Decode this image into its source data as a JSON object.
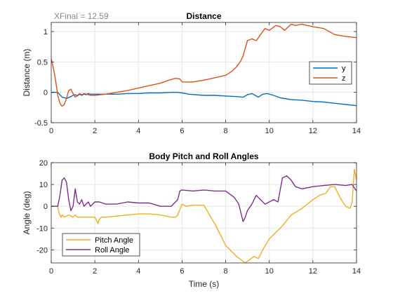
{
  "figure": {
    "xlabel": "Time (s)"
  },
  "chart_data": [
    {
      "type": "line",
      "title": "Distance",
      "annotation": "XFinal = 12.59",
      "xlabel": "",
      "ylabel": "Distance (m)",
      "xlim": [
        0,
        14
      ],
      "ylim": [
        -0.5,
        1.15
      ],
      "xticks": [
        0,
        2,
        4,
        6,
        8,
        10,
        12,
        14
      ],
      "yticks": [
        -0.5,
        0,
        0.5,
        1
      ],
      "ytick_labels": [
        "-0.5",
        "0",
        "0.5",
        "1"
      ],
      "grid": true,
      "legend_position": "right",
      "series": [
        {
          "name": "y",
          "color": "#0072BD",
          "x": [
            0,
            0.3,
            0.5,
            0.7,
            0.9,
            1.0,
            1.1,
            1.2,
            1.3,
            1.4,
            1.5,
            1.6,
            1.7,
            1.8,
            2.0,
            2.5,
            3.0,
            3.5,
            4.0,
            4.5,
            5.0,
            5.5,
            5.8,
            6.0,
            6.3,
            7.0,
            7.5,
            8.0,
            8.5,
            8.8,
            9.0,
            9.2,
            9.5,
            9.7,
            9.9,
            10.2,
            10.5,
            11.0,
            11.5,
            12.0,
            12.5,
            13.0,
            13.5,
            14.0
          ],
          "y": [
            0,
            0,
            -0.08,
            -0.1,
            -0.07,
            -0.05,
            -0.04,
            -0.06,
            -0.03,
            -0.05,
            -0.03,
            -0.04,
            -0.02,
            -0.03,
            -0.03,
            -0.03,
            -0.03,
            -0.02,
            -0.02,
            -0.01,
            -0.01,
            0,
            0,
            -0.01,
            -0.03,
            -0.05,
            -0.05,
            -0.06,
            -0.07,
            -0.08,
            -0.04,
            -0.02,
            -0.08,
            -0.03,
            -0.02,
            -0.05,
            -0.09,
            -0.12,
            -0.13,
            -0.15,
            -0.16,
            -0.18,
            -0.2,
            -0.22
          ]
        },
        {
          "name": "z",
          "color": "#D95319",
          "x": [
            0,
            0.1,
            0.2,
            0.3,
            0.4,
            0.5,
            0.6,
            0.7,
            0.8,
            0.9,
            1.0,
            1.1,
            1.2,
            1.3,
            1.4,
            1.5,
            1.6,
            1.7,
            1.8,
            2.0,
            2.5,
            3.0,
            3.5,
            4.0,
            4.5,
            5.0,
            5.4,
            5.7,
            5.9,
            6.0,
            6.5,
            7.0,
            7.5,
            8.0,
            8.3,
            8.5,
            8.7,
            8.8,
            9.0,
            9.2,
            9.4,
            9.6,
            9.8,
            10.0,
            10.3,
            10.5,
            10.7,
            11.0,
            11.2,
            11.5,
            12.0,
            12.5,
            13.0,
            13.5,
            14.0
          ],
          "y": [
            0.55,
            0.4,
            0.2,
            -0.05,
            -0.18,
            -0.23,
            -0.2,
            -0.1,
            0.03,
            0.05,
            -0.02,
            -0.08,
            -0.05,
            -0.02,
            -0.04,
            -0.02,
            -0.03,
            -0.04,
            -0.05,
            -0.05,
            -0.03,
            0,
            0.03,
            0.07,
            0.11,
            0.15,
            0.2,
            0.23,
            0.22,
            0.17,
            0.17,
            0.2,
            0.24,
            0.28,
            0.35,
            0.42,
            0.52,
            0.6,
            0.85,
            0.88,
            0.85,
            0.95,
            1.05,
            1.02,
            1.1,
            1.08,
            1.02,
            1.12,
            1.1,
            1.12,
            1.08,
            1.05,
            0.95,
            0.92,
            0.9
          ]
        }
      ]
    },
    {
      "type": "line",
      "title": "Body Pitch and Roll Angles",
      "xlabel": "Time (s)",
      "ylabel": "Angle (deg)",
      "xlim": [
        0,
        14
      ],
      "ylim": [
        -26,
        20
      ],
      "xticks": [
        0,
        2,
        4,
        6,
        8,
        10,
        12,
        14
      ],
      "yticks": [
        -20,
        -10,
        0,
        10,
        20
      ],
      "grid": true,
      "legend_position": "bottom-left",
      "series": [
        {
          "name": "Pitch Angle",
          "color": "#EDB120",
          "x": [
            0,
            0.3,
            0.35,
            0.45,
            0.5,
            0.6,
            0.8,
            1.0,
            1.1,
            1.2,
            1.5,
            1.8,
            2.0,
            2.1,
            2.15,
            2.2,
            2.3,
            2.5,
            3.0,
            3.5,
            4.0,
            4.5,
            5.0,
            5.5,
            5.7,
            5.8,
            6.0,
            6.2,
            6.5,
            7.0,
            7.5,
            8.0,
            8.5,
            8.9,
            9.3,
            9.5,
            9.7,
            10.0,
            10.3,
            10.6,
            11.0,
            11.5,
            12.0,
            12.3,
            12.6,
            12.8,
            13.0,
            13.3,
            13.5,
            13.7,
            13.8,
            13.9,
            14.0
          ],
          "y": [
            0,
            0,
            -3,
            -5,
            -4,
            -5,
            -4,
            -5,
            -4,
            -5,
            -5,
            -5,
            -5,
            -7,
            -8,
            -6,
            -5,
            -5,
            -4.5,
            -4,
            -3.5,
            -3.5,
            -4,
            -5,
            -5,
            -4,
            1,
            0,
            0.5,
            0.5,
            -8,
            -18,
            -23,
            -26,
            -23,
            -24,
            -20,
            -15,
            -12,
            -9,
            -4,
            -1,
            3,
            5,
            6,
            9,
            9,
            3,
            0,
            -1,
            2,
            17,
            12
          ]
        },
        {
          "name": "Roll Angle",
          "color": "#7E2F8E",
          "x": [
            0,
            0.3,
            0.4,
            0.5,
            0.6,
            0.7,
            0.8,
            0.9,
            1.0,
            1.1,
            1.2,
            1.3,
            1.4,
            1.5,
            1.6,
            1.7,
            1.8,
            1.9,
            2.0,
            2.2,
            2.5,
            3.0,
            3.5,
            4.0,
            4.5,
            5.0,
            5.5,
            5.8,
            5.9,
            6.0,
            6.5,
            7.0,
            7.5,
            8.0,
            8.4,
            8.6,
            8.8,
            8.9,
            9.0,
            9.2,
            9.4,
            9.6,
            9.8,
            10.0,
            10.2,
            10.4,
            10.6,
            10.8,
            11.0,
            11.2,
            11.5,
            12.0,
            12.5,
            13.0,
            13.5,
            13.8,
            14.0
          ],
          "y": [
            0,
            0,
            5,
            12,
            13,
            11,
            3,
            -2,
            0,
            8,
            2,
            1,
            3,
            0,
            1,
            2,
            0,
            1,
            2,
            2,
            1,
            1,
            2,
            1.5,
            1.5,
            0,
            0,
            3,
            7,
            7.5,
            7,
            7.5,
            7,
            7,
            4,
            1,
            -7,
            -5,
            -2,
            1,
            5,
            3,
            1,
            2,
            3,
            2,
            13,
            14,
            12,
            9,
            8,
            9,
            9.5,
            10,
            9.5,
            10,
            7
          ]
        }
      ]
    }
  ]
}
